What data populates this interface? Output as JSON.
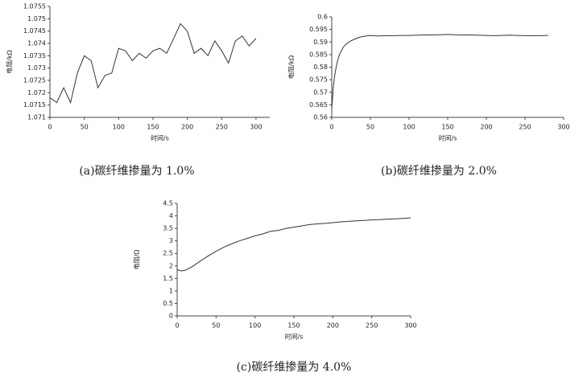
{
  "chart_data": [
    {
      "type": "line",
      "caption": "(a)碳纤维掺量为 1.0%",
      "xlabel": "时间/s",
      "ylabel": "电阻/kΩ",
      "x": [
        0,
        10,
        20,
        30,
        40,
        50,
        60,
        70,
        80,
        90,
        100,
        110,
        120,
        130,
        140,
        150,
        160,
        170,
        180,
        190,
        200,
        210,
        220,
        230,
        240,
        250,
        260,
        270,
        280,
        290,
        300
      ],
      "series": [
        {
          "color": "#333333",
          "values": [
            1.0718,
            1.0716,
            1.0722,
            1.0716,
            1.0728,
            1.0735,
            1.0733,
            1.0722,
            1.0727,
            1.0728,
            1.0738,
            1.0737,
            1.0733,
            1.0736,
            1.0734,
            1.0737,
            1.0738,
            1.0736,
            1.0742,
            1.0748,
            1.0745,
            1.0736,
            1.0738,
            1.0735,
            1.0741,
            1.0737,
            1.0732,
            1.0741,
            1.0743,
            1.0739,
            1.0742
          ]
        }
      ],
      "xlim": [
        0,
        320
      ],
      "xticks": [
        0,
        50,
        100,
        150,
        200,
        250,
        300
      ],
      "ylim": [
        1.071,
        1.0755
      ],
      "yticks": [
        1.071,
        1.0715,
        1.072,
        1.0725,
        1.073,
        1.0735,
        1.074,
        1.0745,
        1.075,
        1.0755
      ]
    },
    {
      "type": "line",
      "caption": "(b)碳纤维掺量为 2.0%",
      "xlabel": "时间/s",
      "ylabel": "电阻/kΩ",
      "x": [
        0,
        2,
        4,
        6,
        8,
        10,
        15,
        20,
        25,
        30,
        35,
        40,
        50,
        60,
        70,
        80,
        90,
        100,
        110,
        120,
        130,
        140,
        150,
        160,
        170,
        180,
        190,
        200,
        210,
        220,
        230,
        240,
        250,
        260,
        270,
        280
      ],
      "series": [
        {
          "color": "#333333",
          "values": [
            0.5635,
            0.572,
            0.577,
            0.5805,
            0.583,
            0.585,
            0.588,
            0.5895,
            0.5905,
            0.5912,
            0.5918,
            0.5922,
            0.5926,
            0.5924,
            0.5925,
            0.5925,
            0.5926,
            0.5926,
            0.5927,
            0.5928,
            0.5928,
            0.5929,
            0.593,
            0.5929,
            0.5928,
            0.5928,
            0.5927,
            0.5926,
            0.5925,
            0.5926,
            0.5927,
            0.5926,
            0.5925,
            0.5925,
            0.5925,
            0.5926
          ]
        }
      ],
      "xlim": [
        0,
        300
      ],
      "xticks": [
        0,
        50,
        100,
        150,
        200,
        250,
        300
      ],
      "ylim": [
        0.56,
        0.6
      ],
      "yticks": [
        0.56,
        0.565,
        0.57,
        0.575,
        0.58,
        0.585,
        0.59,
        0.595,
        0.6
      ]
    },
    {
      "type": "line",
      "caption": "(c)碳纤维掺量为 4.0%",
      "xlabel": "时间/s",
      "ylabel": "电阻/Ω",
      "x": [
        0,
        5,
        10,
        20,
        30,
        40,
        50,
        60,
        70,
        80,
        90,
        100,
        110,
        120,
        130,
        140,
        150,
        160,
        170,
        180,
        190,
        200,
        210,
        220,
        230,
        240,
        250,
        260,
        270,
        280,
        290,
        300
      ],
      "series": [
        {
          "color": "#333333",
          "values": [
            1.85,
            1.8,
            1.82,
            1.98,
            2.2,
            2.4,
            2.58,
            2.75,
            2.88,
            3.0,
            3.1,
            3.2,
            3.28,
            3.38,
            3.42,
            3.5,
            3.55,
            3.6,
            3.65,
            3.68,
            3.7,
            3.73,
            3.76,
            3.78,
            3.8,
            3.82,
            3.84,
            3.85,
            3.87,
            3.88,
            3.9,
            3.92
          ]
        }
      ],
      "xlim": [
        0,
        300
      ],
      "xticks": [
        0,
        50,
        100,
        150,
        200,
        250,
        300
      ],
      "ylim": [
        0,
        4.5
      ],
      "yticks": [
        0,
        0.5,
        1,
        1.5,
        2,
        2.5,
        3,
        3.5,
        4,
        4.5
      ]
    }
  ]
}
